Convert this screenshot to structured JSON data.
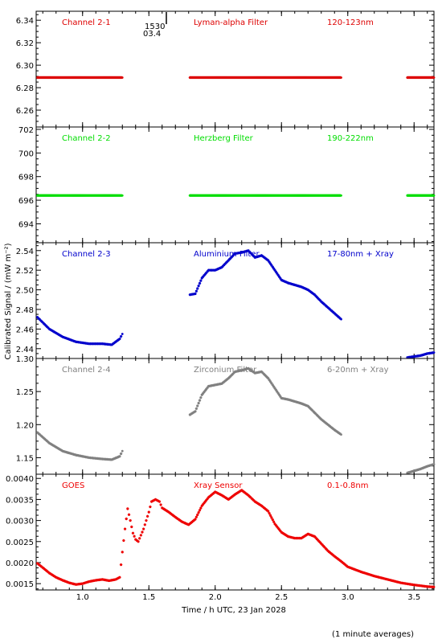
{
  "figure": {
    "xlabel": "Time / h UTC, 23 Jan 2028",
    "ylabel": "Calibrated Signal / (mW m⁻²)",
    "footnote": "(1 minute averages)",
    "marker": {
      "time": "1530",
      "ut": "03.4"
    }
  },
  "chart_data": [
    {
      "type": "scatter",
      "channel": "Channel 2-1",
      "filter": "Lyman-alpha Filter",
      "band": "120-123nm",
      "color": "#dd0000",
      "xlim": [
        0.65,
        3.65
      ],
      "ylim": [
        6.245,
        6.348
      ],
      "yticks": [
        6.26,
        6.28,
        6.3,
        6.32,
        6.34
      ],
      "ydecimals": 2,
      "series": [
        {
          "x": [
            0.66,
            1.3
          ],
          "y": [
            6.289,
            6.289
          ]
        },
        {
          "x": [
            1.81,
            2.95
          ],
          "y": [
            6.289,
            6.289
          ]
        },
        {
          "x": [
            3.45,
            3.65
          ],
          "y": [
            6.289,
            6.289
          ]
        }
      ]
    },
    {
      "type": "scatter",
      "channel": "Channel 2-2",
      "filter": "Herzberg Filter",
      "band": "190-222nm",
      "color": "#00dd00",
      "xlim": [
        0.65,
        3.65
      ],
      "ylim": [
        692.4,
        702.2
      ],
      "yticks": [
        694,
        696,
        698,
        700,
        702
      ],
      "ydecimals": 0,
      "series": [
        {
          "x": [
            0.66,
            1.3
          ],
          "y": [
            696.4,
            696.4
          ]
        },
        {
          "x": [
            1.81,
            2.95
          ],
          "y": [
            696.4,
            696.4
          ]
        },
        {
          "x": [
            3.45,
            3.65
          ],
          "y": [
            696.4,
            696.4
          ]
        }
      ]
    },
    {
      "type": "scatter",
      "channel": "Channel 2-3",
      "filter": "Aluminium Filter",
      "band": "17-80nm + Xray",
      "color": "#0000cc",
      "xlim": [
        0.65,
        3.65
      ],
      "ylim": [
        2.43,
        2.548
      ],
      "yticks": [
        2.44,
        2.46,
        2.48,
        2.5,
        2.52,
        2.54
      ],
      "ydecimals": 2,
      "series": [
        {
          "x": [
            0.66,
            0.75,
            0.85,
            0.95,
            1.05,
            1.15,
            1.22,
            1.28,
            1.3
          ],
          "y": [
            2.472,
            2.46,
            2.452,
            2.447,
            2.445,
            2.445,
            2.444,
            2.45,
            2.455
          ]
        },
        {
          "x": [
            1.81,
            1.85,
            1.9,
            1.95,
            2.0,
            2.05,
            2.1,
            2.15,
            2.2,
            2.25,
            2.3,
            2.35,
            2.4,
            2.45,
            2.5,
            2.55,
            2.6,
            2.65,
            2.7,
            2.75,
            2.8,
            2.85,
            2.9,
            2.95
          ],
          "y": [
            2.495,
            2.496,
            2.512,
            2.52,
            2.52,
            2.523,
            2.53,
            2.537,
            2.538,
            2.54,
            2.533,
            2.535,
            2.53,
            2.52,
            2.51,
            2.507,
            2.505,
            2.503,
            2.5,
            2.495,
            2.488,
            2.482,
            2.476,
            2.47
          ]
        },
        {
          "x": [
            3.45,
            3.5,
            3.55,
            3.6,
            3.65
          ],
          "y": [
            2.431,
            2.432,
            2.433,
            2.435,
            2.436
          ]
        }
      ]
    },
    {
      "type": "scatter",
      "channel": "Channel 2-4",
      "filter": "Zirconium Filter",
      "band": "6-20nm + Xray",
      "color": "#808080",
      "xlim": [
        0.65,
        3.65
      ],
      "ylim": [
        1.125,
        1.3
      ],
      "yticks": [
        1.15,
        1.2,
        1.25,
        1.3
      ],
      "ydecimals": 2,
      "series": [
        {
          "x": [
            0.66,
            0.75,
            0.85,
            0.95,
            1.05,
            1.15,
            1.22,
            1.28,
            1.3
          ],
          "y": [
            1.188,
            1.172,
            1.16,
            1.154,
            1.15,
            1.148,
            1.147,
            1.152,
            1.16
          ]
        },
        {
          "x": [
            1.81,
            1.85,
            1.9,
            1.95,
            2.0,
            2.05,
            2.1,
            2.15,
            2.2,
            2.25,
            2.3,
            2.35,
            2.4,
            2.45,
            2.5,
            2.55,
            2.6,
            2.65,
            2.7,
            2.75,
            2.8,
            2.85,
            2.9,
            2.95
          ],
          "y": [
            1.215,
            1.22,
            1.245,
            1.258,
            1.26,
            1.262,
            1.27,
            1.28,
            1.282,
            1.285,
            1.278,
            1.28,
            1.27,
            1.255,
            1.24,
            1.238,
            1.235,
            1.232,
            1.228,
            1.218,
            1.208,
            1.2,
            1.192,
            1.185
          ]
        },
        {
          "x": [
            3.45,
            3.5,
            3.55,
            3.6,
            3.65
          ],
          "y": [
            1.127,
            1.13,
            1.133,
            1.137,
            1.14
          ]
        }
      ]
    },
    {
      "type": "scatter",
      "channel": "GOES",
      "filter": "Xray Sensor",
      "band": "0.1-0.8nm",
      "color": "#ee0000",
      "xlim": [
        0.65,
        3.65
      ],
      "ylim": [
        0.00135,
        0.0041
      ],
      "yticks": [
        0.0015,
        0.002,
        0.0025,
        0.003,
        0.0035,
        0.004
      ],
      "ydecimals": 4,
      "series": [
        {
          "x": [
            0.66,
            0.7,
            0.75,
            0.8,
            0.85,
            0.9,
            0.95,
            1.0,
            1.05,
            1.1,
            1.15,
            1.2,
            1.25,
            1.28,
            1.3,
            1.32,
            1.34,
            1.36,
            1.38,
            1.4,
            1.42,
            1.44,
            1.46,
            1.48,
            1.5,
            1.52,
            1.55,
            1.58,
            1.6,
            1.65,
            1.7,
            1.75,
            1.8,
            1.85,
            1.9,
            1.95,
            2.0,
            2.05,
            2.1,
            2.15,
            2.2,
            2.25,
            2.3,
            2.35,
            2.4,
            2.45,
            2.5,
            2.55,
            2.6,
            2.65,
            2.7,
            2.75,
            2.8,
            2.85,
            2.9,
            2.95,
            3.0,
            3.1,
            3.2,
            3.3,
            3.4,
            3.5,
            3.6,
            3.65
          ],
          "y": [
            0.00198,
            0.00188,
            0.00175,
            0.00165,
            0.00158,
            0.00152,
            0.00148,
            0.0015,
            0.00155,
            0.00158,
            0.0016,
            0.00157,
            0.0016,
            0.00165,
            0.00225,
            0.0028,
            0.00328,
            0.003,
            0.0027,
            0.00255,
            0.0025,
            0.00265,
            0.0028,
            0.003,
            0.0032,
            0.00345,
            0.0035,
            0.00345,
            0.0033,
            0.0032,
            0.00308,
            0.00297,
            0.0029,
            0.00303,
            0.00335,
            0.00355,
            0.00368,
            0.0036,
            0.0035,
            0.00362,
            0.00372,
            0.0036,
            0.00345,
            0.00335,
            0.00322,
            0.00292,
            0.00272,
            0.00262,
            0.00258,
            0.00258,
            0.00268,
            0.00262,
            0.00245,
            0.00228,
            0.00215,
            0.00203,
            0.0019,
            0.00178,
            0.00168,
            0.0016,
            0.00152,
            0.00147,
            0.00143,
            0.00142
          ]
        }
      ]
    }
  ]
}
